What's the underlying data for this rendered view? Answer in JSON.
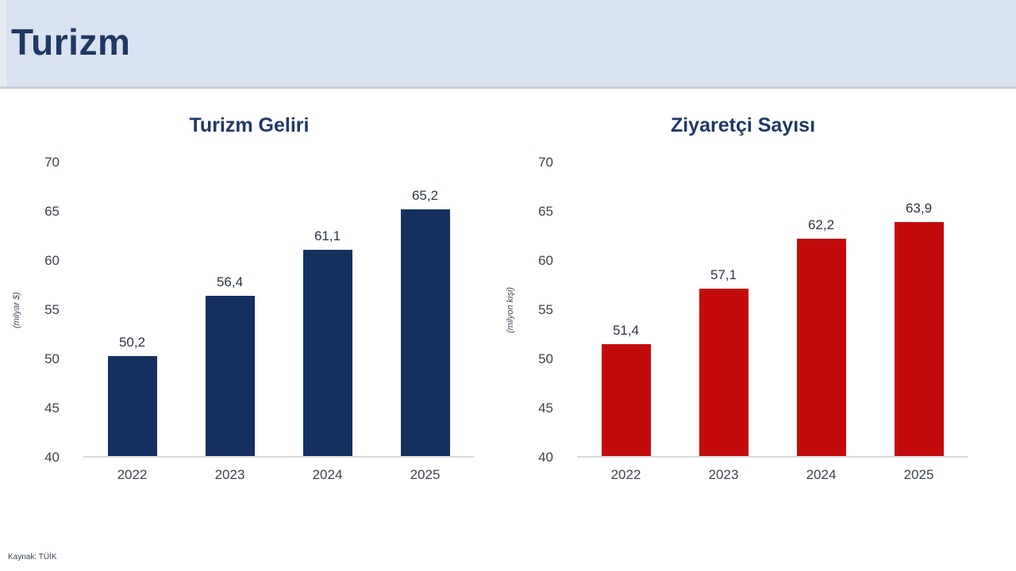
{
  "page": {
    "title": "Turizm",
    "source": "Kaynak: TÜİK"
  },
  "colors": {
    "header_bg": "#d9e2f0",
    "title_text": "#1f3864",
    "axis_line": "#d9d9d9",
    "navy_bar": "#14305f",
    "red_bar": "#c30b0e"
  },
  "chart_data": [
    {
      "type": "bar",
      "title": "Turizm Geliri",
      "ylabel": "(milyar $)",
      "categories": [
        "2022",
        "2023",
        "2024",
        "2025"
      ],
      "values": [
        50.2,
        56.4,
        61.1,
        65.2
      ],
      "value_labels": [
        "50,2",
        "56,4",
        "61,1",
        "65,2"
      ],
      "ylim": [
        40,
        70
      ],
      "yticks": [
        40,
        45,
        50,
        55,
        60,
        65,
        70
      ],
      "bar_color": "#14305f",
      "grid": false,
      "legend": "none"
    },
    {
      "type": "bar",
      "title": "Ziyaretçi Sayısı",
      "ylabel": "(milyon kişi)",
      "categories": [
        "2022",
        "2023",
        "2024",
        "2025"
      ],
      "values": [
        51.4,
        57.1,
        62.2,
        63.9
      ],
      "value_labels": [
        "51,4",
        "57,1",
        "62,2",
        "63,9"
      ],
      "ylim": [
        40,
        70
      ],
      "yticks": [
        40,
        45,
        50,
        55,
        60,
        65,
        70
      ],
      "bar_color": "#c30b0e",
      "grid": false,
      "legend": "none"
    }
  ]
}
